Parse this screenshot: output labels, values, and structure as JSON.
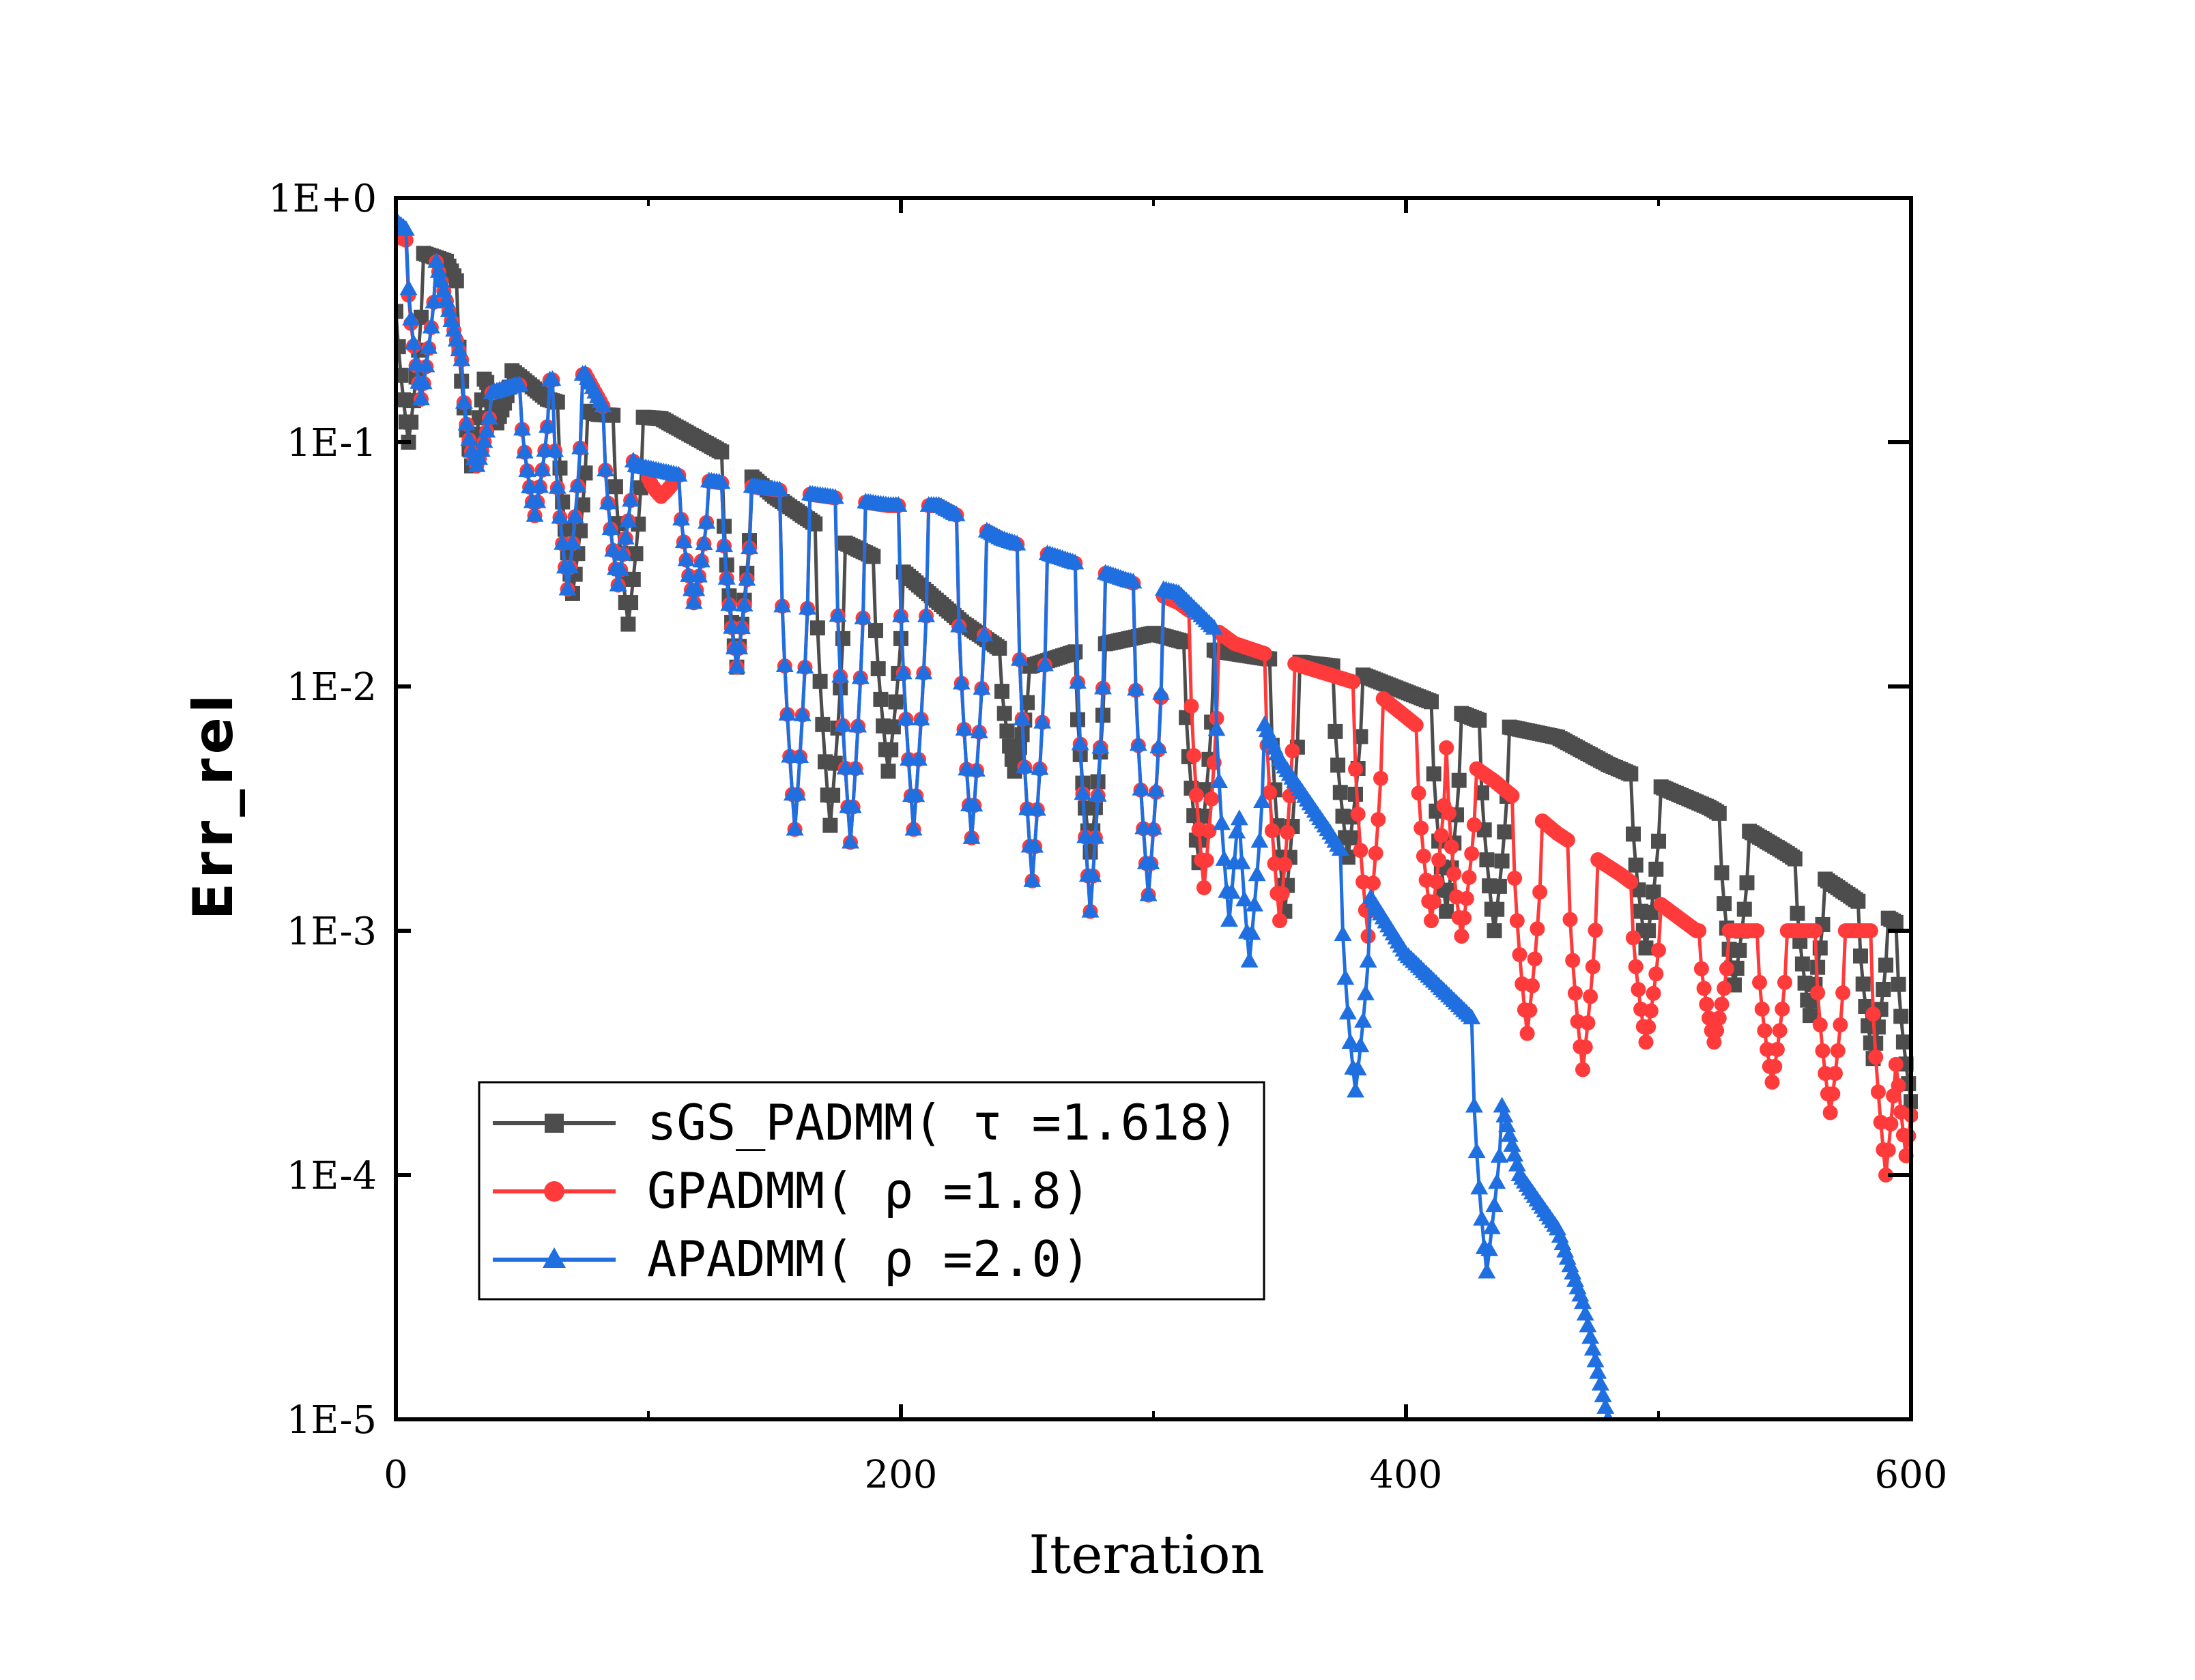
{
  "chart_data": {
    "type": "line",
    "xlabel": "Iteration",
    "ylabel": "Err_rel",
    "yscale": "log",
    "xlim": [
      0,
      600
    ],
    "ylim": [
      1e-05,
      1
    ],
    "xticks": [
      0,
      200,
      400,
      600
    ],
    "xtick_labels": [
      "0",
      "200",
      "400",
      "600"
    ],
    "yticks": [
      1,
      0.1,
      0.01,
      0.001,
      0.0001,
      1e-05
    ],
    "ytick_labels": [
      "1E+0",
      "1E-1",
      "1E-2",
      "1E-3",
      "1E-4",
      "1E-5"
    ],
    "legend_position": "bottom-left",
    "series": [
      {
        "name": "sGS_PADMM(τ=1.618)",
        "label": "sGS_PADMM( τ =1.618)",
        "color": "#4d4d4d",
        "marker": "square",
        "x_range": [
          0,
          600
        ],
        "points_per_10": 10,
        "envelope": [
          [
            0,
            0.65
          ],
          [
            20,
            0.55
          ],
          [
            40,
            0.22
          ],
          [
            60,
            0.15
          ],
          [
            80,
            0.13
          ],
          [
            105,
            0.125
          ],
          [
            130,
            0.09
          ],
          [
            150,
            0.06
          ],
          [
            175,
            0.04
          ],
          [
            200,
            0.03
          ],
          [
            225,
            0.018
          ],
          [
            250,
            0.012
          ],
          [
            275,
            0.0145
          ],
          [
            300,
            0.0165
          ],
          [
            325,
            0.014
          ],
          [
            345,
            0.013
          ],
          [
            375,
            0.012
          ],
          [
            400,
            0.0095
          ],
          [
            430,
            0.0072
          ],
          [
            460,
            0.0062
          ],
          [
            480,
            0.0048
          ],
          [
            520,
            0.0032
          ],
          [
            550,
            0.0021
          ],
          [
            580,
            0.0013
          ],
          [
            600,
            0.001
          ]
        ],
        "minima": [
          [
            5,
            0.1
          ],
          [
            30,
            0.08
          ],
          [
            40,
            0.12
          ],
          [
            70,
            0.024
          ],
          [
            92,
            0.018
          ],
          [
            135,
            0.012
          ],
          [
            172,
            0.0027
          ],
          [
            195,
            0.0045
          ],
          [
            245,
            0.0045
          ],
          [
            275,
            0.0021
          ],
          [
            318,
            0.0019
          ],
          [
            352,
            0.0012
          ],
          [
            377,
            0.002
          ],
          [
            416,
            0.0012
          ],
          [
            435,
            0.001
          ],
          [
            495,
            0.00085
          ],
          [
            530,
            0.0006
          ],
          [
            560,
            0.00045
          ],
          [
            585,
            0.0003
          ],
          [
            600,
            0.0002
          ]
        ]
      },
      {
        "name": "GPADMM(ρ=1.8)",
        "label": "GPADMM( ρ =1.8)",
        "color": "#ff3a3a",
        "marker": "circle",
        "x_range": [
          0,
          600
        ],
        "points_per_10": 10,
        "envelope": [
          [
            0,
            0.7
          ],
          [
            15,
            0.6
          ],
          [
            30,
            0.15
          ],
          [
            47,
            0.17
          ],
          [
            62,
            0.18
          ],
          [
            75,
            0.19
          ],
          [
            95,
            0.08
          ],
          [
            120,
            0.07
          ],
          [
            145,
            0.065
          ],
          [
            170,
            0.06
          ],
          [
            195,
            0.055
          ],
          [
            215,
            0.055
          ],
          [
            240,
            0.04
          ],
          [
            265,
            0.033
          ],
          [
            290,
            0.027
          ],
          [
            310,
            0.022
          ],
          [
            332,
            0.015
          ],
          [
            360,
            0.012
          ],
          [
            385,
            0.01
          ],
          [
            410,
            0.0062
          ],
          [
            435,
            0.0041
          ],
          [
            460,
            0.0025
          ],
          [
            485,
            0.0017
          ],
          [
            515,
            0.001
          ],
          [
            540,
            0.001
          ],
          [
            565,
            0.001
          ],
          [
            590,
            0.001
          ],
          [
            600,
            0.0007
          ]
        ],
        "minima": [
          [
            10,
            0.15
          ],
          [
            32,
            0.08
          ],
          [
            55,
            0.05
          ],
          [
            68,
            0.025
          ],
          [
            88,
            0.026
          ],
          [
            105,
            0.06
          ],
          [
            118,
            0.022
          ],
          [
            135,
            0.012
          ],
          [
            158,
            0.0026
          ],
          [
            180,
            0.0023
          ],
          [
            205,
            0.0026
          ],
          [
            228,
            0.0024
          ],
          [
            252,
            0.0016
          ],
          [
            275,
            0.0012
          ],
          [
            298,
            0.0014
          ],
          [
            320,
            0.0015
          ],
          [
            350,
            0.0011
          ],
          [
            385,
            0.00095
          ],
          [
            410,
            0.0011
          ],
          [
            422,
            0.00095
          ],
          [
            448,
            0.00038
          ],
          [
            470,
            0.00027
          ],
          [
            495,
            0.00035
          ],
          [
            522,
            0.00035
          ],
          [
            545,
            0.00024
          ],
          [
            568,
            0.00018
          ],
          [
            590,
            0.0001
          ],
          [
            598,
            0.00012
          ]
        ]
      },
      {
        "name": "APADMM(ρ=2.0)",
        "label": "APADMM( ρ =2.0)",
        "color": "#1f6fe0",
        "marker": "triangle",
        "x_range": [
          0,
          480
        ],
        "points_per_10": 10,
        "envelope": [
          [
            0,
            0.8
          ],
          [
            15,
            0.6
          ],
          [
            30,
            0.15
          ],
          [
            47,
            0.17
          ],
          [
            62,
            0.18
          ],
          [
            75,
            0.19
          ],
          [
            95,
            0.08
          ],
          [
            120,
            0.07
          ],
          [
            145,
            0.065
          ],
          [
            170,
            0.06
          ],
          [
            195,
            0.055
          ],
          [
            215,
            0.055
          ],
          [
            240,
            0.04
          ],
          [
            265,
            0.033
          ],
          [
            290,
            0.027
          ],
          [
            310,
            0.024
          ],
          [
            330,
            0.015
          ],
          [
            350,
            0.005
          ],
          [
            370,
            0.0025
          ],
          [
            400,
            0.0008
          ],
          [
            430,
            0.0004
          ],
          [
            445,
            0.0001
          ],
          [
            460,
            6e-05
          ],
          [
            470,
            3e-05
          ],
          [
            480,
            1e-05
          ]
        ],
        "minima": [
          [
            10,
            0.15
          ],
          [
            32,
            0.08
          ],
          [
            55,
            0.05
          ],
          [
            68,
            0.025
          ],
          [
            88,
            0.026
          ],
          [
            118,
            0.022
          ],
          [
            135,
            0.012
          ],
          [
            158,
            0.0026
          ],
          [
            180,
            0.0023
          ],
          [
            205,
            0.0026
          ],
          [
            228,
            0.0024
          ],
          [
            252,
            0.0016
          ],
          [
            275,
            0.0012
          ],
          [
            298,
            0.0014
          ],
          [
            330,
            0.0011
          ],
          [
            338,
            0.00075
          ],
          [
            380,
            0.00022
          ],
          [
            432,
            4e-05
          ]
        ]
      }
    ]
  }
}
